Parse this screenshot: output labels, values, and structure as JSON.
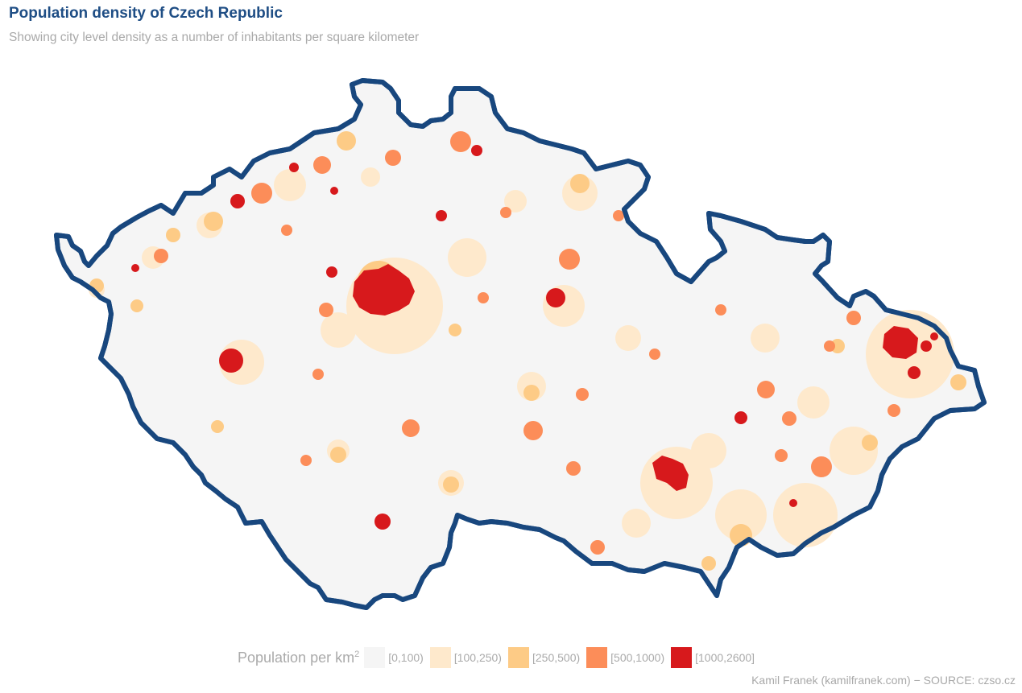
{
  "title": "Population density of Czech Republic",
  "subtitle": "Showing city level density as a number of inhabitants per square kilometer",
  "legend": {
    "title": "Population per  km",
    "title_sup": "2",
    "items": [
      {
        "label": "[0,100)",
        "color": "#f5f5f5"
      },
      {
        "label": "[100,250)",
        "color": "#fee9cc"
      },
      {
        "label": "[250,500)",
        "color": "#fdcb86"
      },
      {
        "label": "[500,1000)",
        "color": "#fc8d59"
      },
      {
        "label": "[1000,2600]",
        "color": "#d7191c"
      }
    ]
  },
  "caption": "Kamil Franek (kamilfranek.com) − SOURCE: czso.cz",
  "colors": {
    "border": "#18477e",
    "base_fill": "#f5f5f5"
  }
}
